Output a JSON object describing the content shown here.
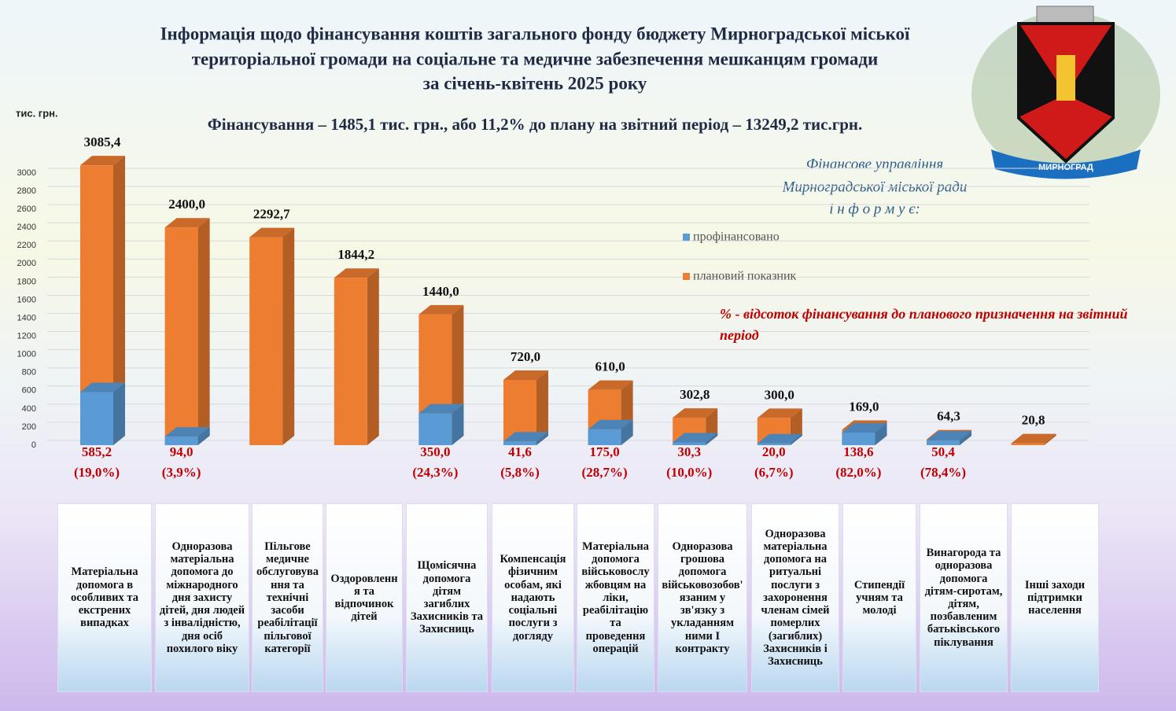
{
  "chart_data": {
    "type": "bar",
    "title": [
      "Інформація щодо фінансування коштів загального фонду бюджету Мирноградської міської",
      "територіальної громади на соціальне та медичне забезпечення мешканцям громади",
      "за січень-квітень 2025  року"
    ],
    "subtitle": "Фінансування – 1485,1 тис. грн., або 11,2% до плану на звітний період – 13249,2 тис.грн.",
    "y_label": "тис. грн.",
    "annotation": [
      "Фінансове управління",
      "Мирноградської міської ради",
      "і н ф о р м у є:"
    ],
    "note": "% - відсоток фінансування до планового призначення на звітний період",
    "logo_text": "МИРНОГРАД",
    "categories": [
      "Матеріальна допомога в особливих та екстрених випадках",
      "Одноразова матеріальна допомога до міжнародного дня захисту дітей, дня людей з інвалідністю, дня осіб похилого віку",
      "Пільгове медичне обслуговування та технічні засоби реабілітації пільгової категорії",
      "Оздоровлення та відпочинок дітей",
      "Щомісячна допомога дітям загиблих Захисників та Захисниць",
      "Компенсація фізичним особам, які надають соціальні послуги з догляду",
      "Матеріальна допомога військовослужбовцям на ліки, реабілітацію та проведення операцій",
      "Одноразова грошова допомога військовозобов'язаним у зв'язку з укладанням ними І контракту",
      "Одноразова матеріальна допомога на ритуальні послуги з захоронення членам сімей померлих (загиблих) Захисників і Захисниць",
      "Стипендії учням та молоді",
      "Винагорода та одноразова допомога дітям-сиротам, дітям, позбавленим батьківського піклування",
      "Інші заходи підтримки населення"
    ],
    "series": [
      {
        "name": "профінансовано",
        "color": "#5b9bd5",
        "values": [
          585.2,
          94.0,
          null,
          null,
          350.0,
          41.6,
          175.0,
          30.3,
          20.0,
          138.6,
          50.4,
          null
        ],
        "value_labels": [
          "585,2",
          "94,0",
          null,
          null,
          "350,0",
          "41,6",
          "175,0",
          "30,3",
          "20,0",
          "138,6",
          "50,4",
          null
        ]
      },
      {
        "name": "плановий показник",
        "color": "#ed7d31",
        "values": [
          3085.4,
          2400.0,
          2292.7,
          1844.2,
          1440.0,
          720.0,
          610.0,
          302.8,
          300.0,
          169.0,
          64.3,
          20.8
        ],
        "value_labels": [
          "3085,4",
          "2400,0",
          "2292,7",
          "1844,2",
          "1440,0",
          "720,0",
          "610,0",
          "302,8",
          "300,0",
          "169,0",
          "64,3",
          "20,8"
        ]
      }
    ],
    "percents": [
      19.0,
      3.9,
      null,
      null,
      24.3,
      5.8,
      28.7,
      10.0,
      6.7,
      82.0,
      78.4,
      null
    ],
    "percent_labels": [
      "(19,0%)",
      "(3,9%)",
      null,
      null,
      "(24,3%)",
      "(5,8%)",
      "(28,7%)",
      "(10,0%)",
      "(6,7%)",
      "(82,0%)",
      "(78,4%)",
      null
    ],
    "ylim": [
      0,
      3000
    ],
    "yticks": [
      0,
      200,
      400,
      600,
      800,
      1000,
      1200,
      1400,
      1600,
      1800,
      2000,
      2200,
      2400,
      2600,
      2800,
      3000
    ],
    "grid": true
  }
}
